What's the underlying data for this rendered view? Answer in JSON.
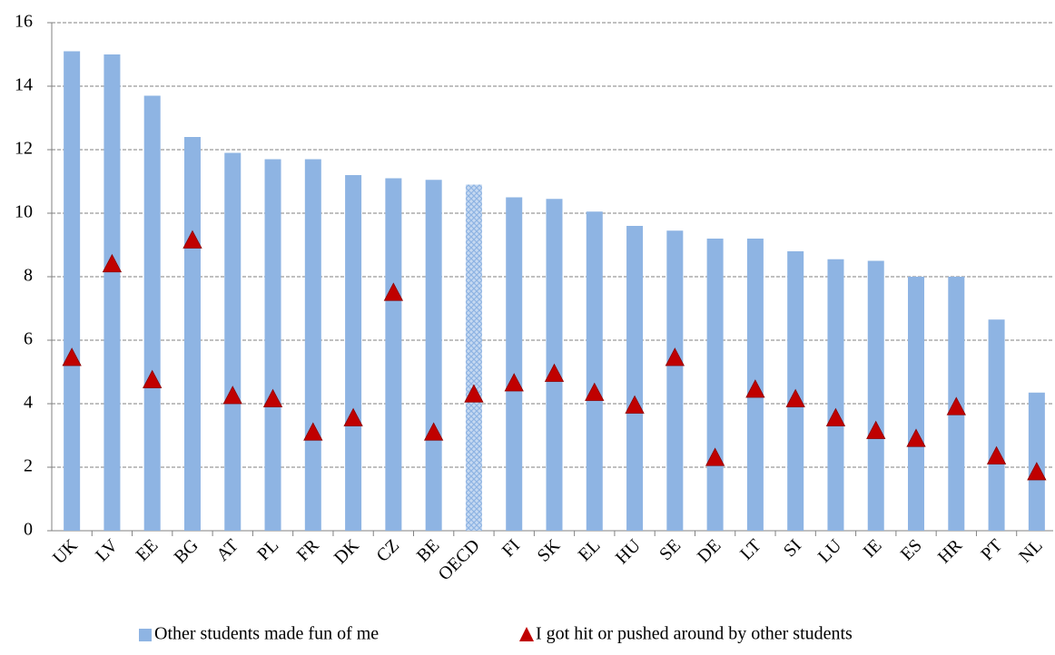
{
  "chart_data": {
    "type": "bar_marker",
    "categories": [
      "UK",
      "LV",
      "EE",
      "BG",
      "AT",
      "PL",
      "FR",
      "DK",
      "CZ",
      "BE",
      "OECD",
      "FI",
      "SK",
      "EL",
      "HU",
      "SE",
      "DE",
      "LT",
      "SI",
      "LU",
      "IE",
      "ES",
      "HR",
      "PT",
      "NL"
    ],
    "series": [
      {
        "name": "Other students made fun of me",
        "color": "#8eb4e3",
        "kind": "bar",
        "values": [
          15.1,
          15.0,
          13.7,
          12.4,
          11.9,
          11.7,
          11.7,
          11.2,
          11.1,
          11.05,
          10.9,
          10.5,
          10.45,
          10.05,
          9.6,
          9.45,
          9.2,
          9.2,
          8.8,
          8.55,
          8.5,
          8.0,
          8.0,
          6.65,
          4.35
        ]
      },
      {
        "name": "I got hit or pushed around by other students",
        "color": "#c00000",
        "kind": "triangle",
        "values": [
          5.4,
          8.35,
          4.7,
          9.1,
          4.2,
          4.1,
          3.05,
          3.5,
          7.45,
          3.05,
          4.25,
          4.6,
          4.9,
          4.3,
          3.9,
          5.4,
          2.25,
          4.4,
          4.1,
          3.5,
          3.1,
          2.85,
          3.85,
          2.3,
          1.8
        ]
      }
    ],
    "highlight_index": 10,
    "ylim": [
      0,
      16
    ],
    "yticks": [
      0,
      2,
      4,
      6,
      8,
      10,
      12,
      14,
      16
    ],
    "grid": true,
    "legend": "bottom"
  }
}
